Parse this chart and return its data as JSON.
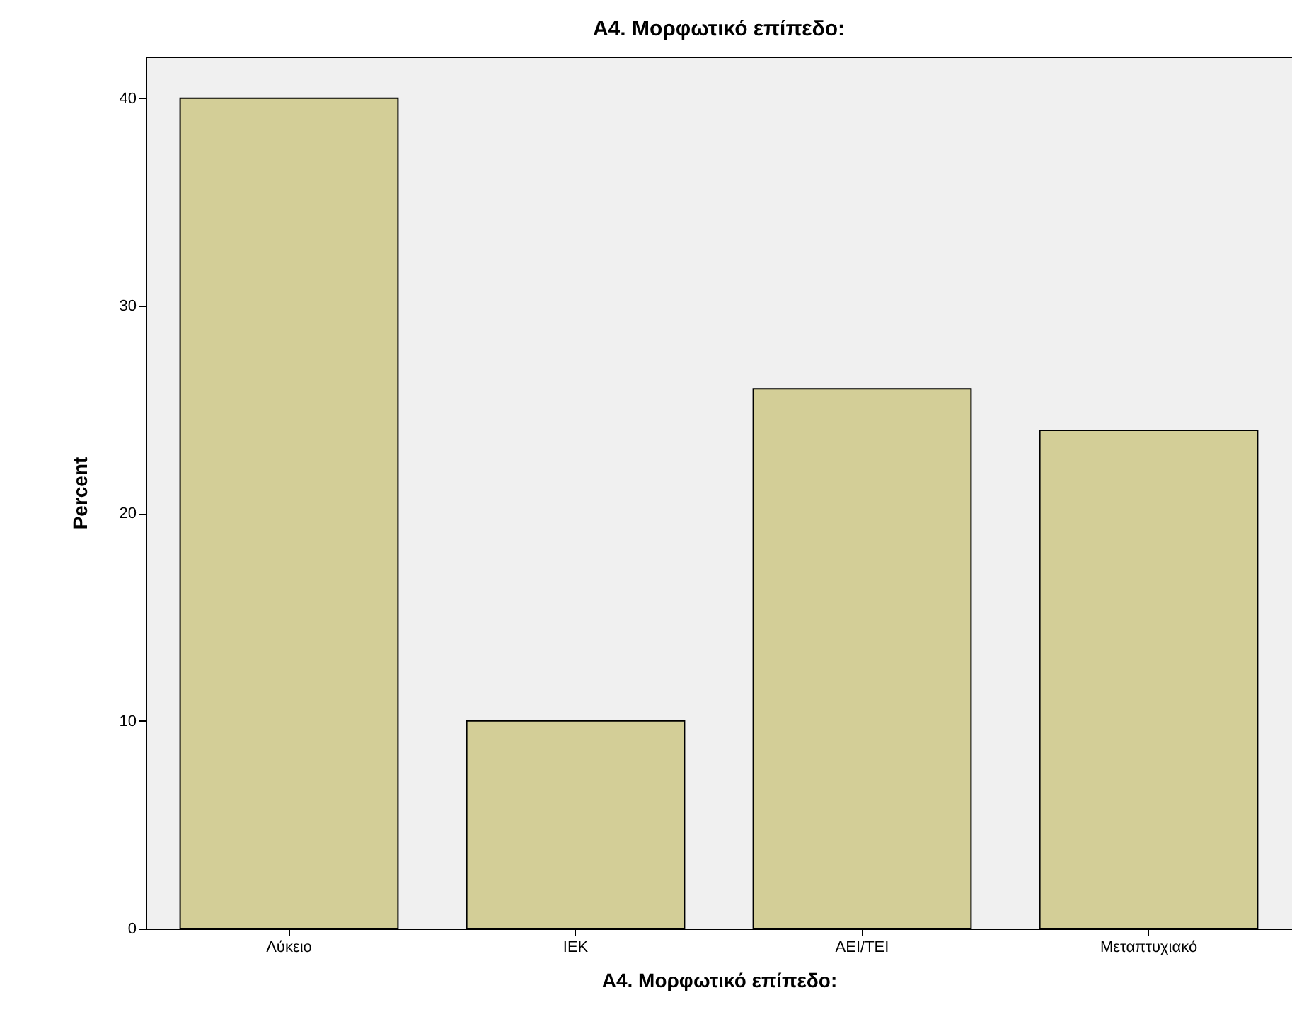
{
  "chart_data": {
    "type": "bar",
    "title": "A4. Μορφωτικό επίπεδο:",
    "xlabel": "A4. Μορφωτικό επίπεδο:",
    "ylabel": "Percent",
    "categories": [
      "Λύκειο",
      "ΙΕΚ",
      "ΑΕΙ/ΤΕΙ",
      "Μεταπτυχιακό"
    ],
    "values": [
      40,
      10,
      26,
      24
    ],
    "color": "#d3ce97",
    "ylim": [
      0,
      42
    ],
    "yticks": [
      0,
      10,
      20,
      30,
      40
    ],
    "grid": false
  }
}
